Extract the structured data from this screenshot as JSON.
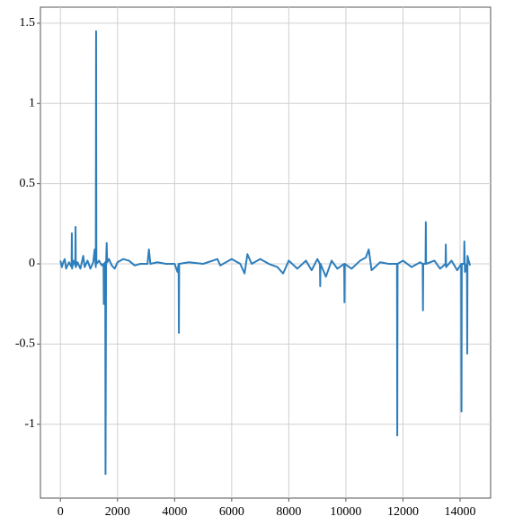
{
  "chart_data": {
    "type": "line",
    "x": [
      0,
      50,
      100,
      150,
      200,
      300,
      390,
      400,
      410,
      450,
      520,
      530,
      540,
      600,
      700,
      800,
      850,
      950,
      1050,
      1150,
      1200,
      1240,
      1250,
      1260,
      1350,
      1450,
      1510,
      1520,
      1540,
      1570,
      1580,
      1600,
      1620,
      1640,
      1700,
      1800,
      1900,
      2000,
      2200,
      2400,
      2600,
      2800,
      3050,
      3100,
      3150,
      3400,
      3700,
      4000,
      4100,
      4140,
      4150,
      4160,
      4500,
      5000,
      5500,
      5600,
      6000,
      6300,
      6450,
      6550,
      6700,
      7000,
      7300,
      7600,
      7800,
      8000,
      8300,
      8600,
      8800,
      9000,
      9090,
      9100,
      9110,
      9300,
      9500,
      9700,
      9940,
      9950,
      9960,
      10200,
      10500,
      10700,
      10800,
      10900,
      11200,
      11500,
      11790,
      11800,
      11810,
      12000,
      12300,
      12600,
      12690,
      12700,
      12710,
      12790,
      12800,
      12810,
      13100,
      13300,
      13490,
      13500,
      13510,
      13700,
      13900,
      14040,
      14050,
      14060,
      14140,
      14150,
      14170,
      14240,
      14250,
      14260,
      14300,
      14350
    ],
    "series": [
      {
        "color": "#2e7ebc",
        "values": [
          0.02,
          -0.02,
          0.01,
          0.03,
          -0.03,
          0.01,
          -0.02,
          0.19,
          -0.03,
          0.02,
          -0.01,
          0.23,
          -0.02,
          0.01,
          -0.03,
          0.05,
          -0.02,
          0.02,
          -0.03,
          0.01,
          0.09,
          -0.02,
          1.45,
          0.0,
          0.02,
          -0.01,
          0.0,
          -0.25,
          0.0,
          0.01,
          -1.31,
          0.0,
          0.13,
          0.01,
          0.03,
          -0.01,
          -0.03,
          0.01,
          0.03,
          0.02,
          -0.01,
          0.0,
          0.0,
          0.09,
          0.0,
          0.01,
          0.0,
          0.0,
          -0.05,
          0.0,
          -0.43,
          0.0,
          0.01,
          0.0,
          0.03,
          -0.01,
          0.03,
          0.0,
          -0.06,
          0.06,
          0.0,
          0.03,
          0.0,
          -0.02,
          -0.06,
          0.02,
          -0.03,
          0.02,
          -0.04,
          0.03,
          0.0,
          -0.14,
          0.0,
          -0.08,
          0.02,
          -0.03,
          0.0,
          -0.24,
          0.0,
          -0.03,
          0.02,
          0.04,
          0.09,
          -0.04,
          0.01,
          0.0,
          0.0,
          -1.07,
          0.0,
          0.02,
          -0.02,
          0.01,
          0.0,
          -0.29,
          0.0,
          0.0,
          0.26,
          0.0,
          0.02,
          -0.03,
          0.0,
          0.12,
          -0.02,
          0.02,
          -0.04,
          0.0,
          -0.92,
          0.0,
          0.0,
          0.14,
          -0.05,
          0.0,
          -0.56,
          0.05,
          0.02,
          -0.01
        ]
      }
    ],
    "xlim": [
      -700,
      15070
    ],
    "ylim": [
      -1.46,
      1.6
    ],
    "xticks": [
      0,
      2000,
      4000,
      6000,
      8000,
      10000,
      12000,
      14000
    ],
    "yticks": [
      -1,
      -0.5,
      0,
      0.5,
      1,
      1.5
    ],
    "grid": true
  }
}
